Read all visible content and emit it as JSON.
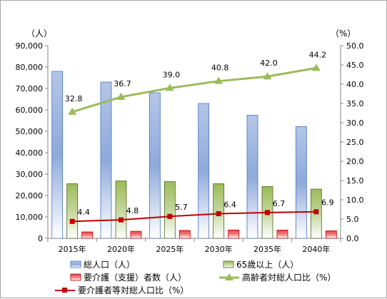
{
  "chart_data": {
    "type": "bar",
    "categories": [
      "2015年",
      "2020年",
      "2025年",
      "2030年",
      "2035年",
      "2040年"
    ],
    "left_axis": {
      "unit_label": "（人）",
      "ylim": [
        0,
        90000
      ],
      "ticks": [
        "0",
        "10,000",
        "20,000",
        "30,000",
        "40,000",
        "50,000",
        "60,000",
        "70,000",
        "80,000",
        "90,000"
      ]
    },
    "right_axis": {
      "unit_label": "（%）",
      "ylim": [
        0,
        50
      ],
      "ticks": [
        "0.0",
        "5.0",
        "10.0",
        "15.0",
        "20.0",
        "25.0",
        "30.0",
        "35.0",
        "40.0",
        "45.0",
        "50.0"
      ]
    },
    "series": [
      {
        "name": "総人口（人）",
        "type": "bar",
        "axis": "left",
        "color": "#8eaadb",
        "values": [
          78000,
          73000,
          68000,
          63000,
          57500,
          52200
        ],
        "labels": []
      },
      {
        "name": "65歳以上（人）",
        "type": "bar",
        "axis": "left",
        "color": "#9bbb59",
        "values": [
          25500,
          26800,
          26500,
          25500,
          24200,
          23000
        ],
        "labels": []
      },
      {
        "name": "要介護（支援）者数（人）",
        "type": "bar",
        "axis": "left",
        "color": "#e04848",
        "values": [
          3000,
          3300,
          3700,
          3900,
          3850,
          3500
        ],
        "labels": []
      },
      {
        "name": "高齢者対総人口比（%）",
        "type": "line",
        "axis": "right",
        "color": "#9bbb59",
        "values": [
          32.8,
          36.7,
          39.0,
          40.8,
          42.0,
          44.2
        ],
        "labels": [
          "32.8",
          "36.7",
          "39.0",
          "40.8",
          "42.0",
          "44.2"
        ]
      },
      {
        "name": "要介護者等対総人口比（%）",
        "type": "line",
        "axis": "right",
        "color": "#c00000",
        "values": [
          4.4,
          4.8,
          5.7,
          6.4,
          6.7,
          6.9
        ],
        "labels": [
          "4.4",
          "4.8",
          "5.7",
          "6.4",
          "6.7",
          "6.9"
        ]
      }
    ],
    "grid": false,
    "legend_position": "bottom"
  }
}
